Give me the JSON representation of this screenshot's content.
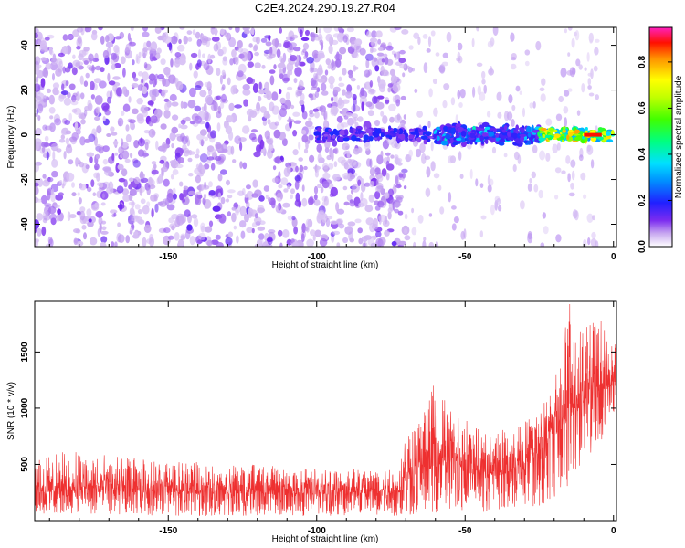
{
  "figure": {
    "title": "C2E4.2024.290.19.27.R04"
  },
  "colors": {
    "snr_line": "#ee3030",
    "frame": "#000000",
    "background": "#ffffff"
  },
  "chart_data": [
    {
      "type": "heatmap",
      "xlabel": "Height of straight line (km)",
      "ylabel": "Frequency (Hz)",
      "xlim": [
        -195,
        1
      ],
      "ylim": [
        -50,
        48
      ],
      "x_ticks": [
        -150,
        -100,
        -50,
        0
      ],
      "x_tick_labels": [
        "-150",
        "-100",
        "-50",
        "0"
      ],
      "y_ticks": [
        -40,
        -20,
        0,
        20,
        40
      ],
      "y_tick_labels": [
        "-40",
        "-20",
        "0",
        "20",
        "40"
      ],
      "colorbar": {
        "label": "Normalized spectral amplitude",
        "range": [
          0,
          0.95
        ],
        "ticks": [
          0.0,
          0.2,
          0.4,
          0.6,
          0.8
        ],
        "tick_labels": [
          "0.0",
          "0.2",
          "0.4",
          "0.6",
          "0.8"
        ],
        "colormap": "rainbow (white-purple-blue-cyan-green-yellow-red-magenta)"
      },
      "features": [
        {
          "description": "broadband low-amplitude noise",
          "x_range": [
            -195,
            -70
          ],
          "freq_range": [
            -50,
            48
          ],
          "amplitude": "0.05-0.15"
        },
        {
          "description": "signal band near 0 Hz",
          "x_range": [
            -100,
            -60
          ],
          "freq_center": 0,
          "freq_width": 6,
          "amplitude": "0.1-0.2"
        },
        {
          "description": "signal band near 0 Hz",
          "x_range": [
            -60,
            -25
          ],
          "freq_center": 0,
          "freq_width": 8,
          "amplitude": "0.2-0.4"
        },
        {
          "description": "strong signal near 0 Hz",
          "x_range": [
            -25,
            0
          ],
          "freq_center": 0,
          "freq_width": 5,
          "amplitude": "0.4-0.9"
        }
      ]
    },
    {
      "type": "line",
      "xlabel": "Height of straight line (km)",
      "ylabel": "SNR (10 * v/v)",
      "xlim": [
        -195,
        1
      ],
      "ylim": [
        0,
        1950
      ],
      "x_ticks": [
        -150,
        -100,
        -50,
        0
      ],
      "x_tick_labels": [
        "-150",
        "-100",
        "-50",
        "0"
      ],
      "y_ticks": [
        500,
        1000,
        1500
      ],
      "y_tick_labels": [
        "500",
        "1000",
        "1500"
      ],
      "series": [
        {
          "x": [
            -195,
            -180,
            -170,
            -160,
            -150,
            -140,
            -130,
            -120,
            -110,
            -100,
            -90,
            -80,
            -72,
            -70,
            -65,
            -60,
            -55,
            -50,
            -45,
            -40,
            -35,
            -30,
            -25,
            -20,
            -15,
            -10,
            -5,
            0
          ],
          "y_low": [
            50,
            60,
            50,
            50,
            40,
            40,
            40,
            40,
            40,
            40,
            40,
            40,
            40,
            50,
            60,
            70,
            80,
            80,
            70,
            80,
            90,
            100,
            120,
            200,
            300,
            500,
            700,
            800
          ],
          "y_mid": [
            250,
            260,
            250,
            250,
            240,
            240,
            240,
            235,
            230,
            230,
            235,
            240,
            250,
            350,
            420,
            480,
            500,
            470,
            420,
            400,
            420,
            500,
            600,
            750,
            900,
            1050,
            1150,
            1200
          ],
          "y_high": [
            550,
            650,
            580,
            560,
            520,
            520,
            500,
            500,
            480,
            470,
            480,
            500,
            500,
            750,
            950,
            1250,
            1000,
            950,
            800,
            800,
            850,
            900,
            1000,
            1300,
            1950,
            1700,
            1850,
            1600
          ]
        }
      ]
    }
  ]
}
